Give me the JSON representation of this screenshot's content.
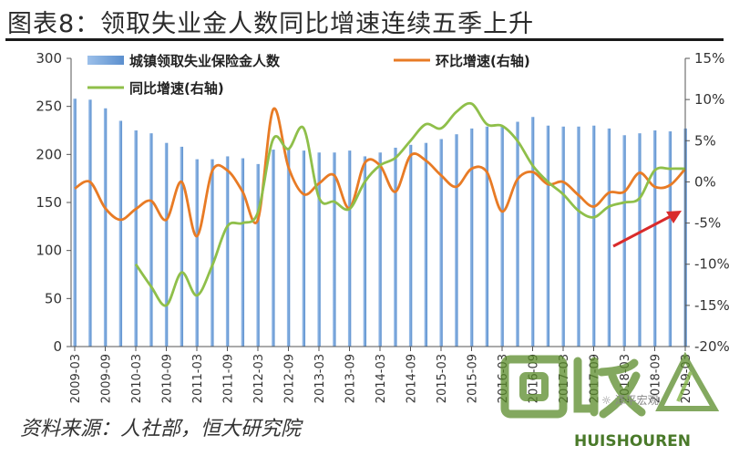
{
  "figure": {
    "title": "图表8：领取失业金人数同比增速连续五季上升",
    "source": "资料来源：人社部，恒大研究院",
    "watermark_social": "泽平宏观",
    "watermark_brand_cn": "回收",
    "watermark_brand_en": "HUISHOUREN"
  },
  "colors": {
    "bar": "#5b8fce",
    "ring_ratio": "#e87b25",
    "year_on_year": "#8fbf4a",
    "arrow": "#d92b2b"
  },
  "chart_data": {
    "type": "bar",
    "categories": [
      "2009-03",
      "2009-06",
      "2009-09",
      "2009-12",
      "2010-03",
      "2010-06",
      "2010-09",
      "2010-12",
      "2011-03",
      "2011-06",
      "2011-09",
      "2011-12",
      "2012-03",
      "2012-06",
      "2012-09",
      "2012-12",
      "2013-03",
      "2013-06",
      "2013-09",
      "2013-12",
      "2014-03",
      "2014-06",
      "2014-09",
      "2014-12",
      "2015-03",
      "2015-06",
      "2015-09",
      "2015-12",
      "2016-03",
      "2016-06",
      "2016-09",
      "2016-12",
      "2017-03",
      "2017-06",
      "2017-09",
      "2017-12",
      "2018-03",
      "2018-06",
      "2018-09",
      "2018-12",
      "2019-03"
    ],
    "tick_labels": [
      "2009-03",
      "2009-09",
      "2010-03",
      "2010-09",
      "2011-03",
      "2011-09",
      "2012-03",
      "2012-09",
      "2013-03",
      "2013-09",
      "2014-03",
      "2014-09",
      "2015-03",
      "2015-09",
      "2016-03",
      "2016-09",
      "2017-03",
      "2017-09",
      "2018-03",
      "2018-09",
      "2019-03"
    ],
    "series": [
      {
        "name": "城镇领取失业保险金人数",
        "type": "bar",
        "axis": "left",
        "values": [
          258,
          257,
          248,
          235,
          225,
          222,
          212,
          208,
          195,
          195,
          198,
          196,
          190,
          205,
          206,
          204,
          202,
          202,
          204,
          198,
          202,
          207,
          210,
          212,
          216,
          221,
          227,
          229,
          230,
          234,
          239,
          230,
          229,
          229,
          230,
          227,
          220,
          222,
          225,
          224,
          227
        ]
      },
      {
        "name": "环比增速(右轴)",
        "type": "line",
        "axis": "right",
        "values": [
          -0.8,
          0.0,
          -3.2,
          -4.6,
          -3.3,
          -2.3,
          -4.6,
          0.0,
          -6.6,
          1.3,
          1.4,
          -1.2,
          -4.6,
          8.8,
          1.8,
          -1.5,
          -0.2,
          0.8,
          -3.2,
          2.3,
          2.0,
          -1.2,
          3.2,
          2.6,
          0.8,
          -0.6,
          1.6,
          1.2,
          -3.6,
          0.3,
          1.2,
          -0.3,
          0.0,
          -1.6,
          -3.0,
          -1.3,
          -1.2,
          1.1,
          -0.6,
          -0.4,
          1.6
        ]
      },
      {
        "name": "同比增速(右轴)",
        "type": "line",
        "axis": "right",
        "values": [
          null,
          null,
          null,
          null,
          -10.0,
          -12.7,
          -15.0,
          -11.0,
          -13.8,
          -10.2,
          -5.4,
          -5.0,
          -3.7,
          5.2,
          4.0,
          6.5,
          -1.9,
          -2.4,
          -3.3,
          0.0,
          2.0,
          2.9,
          5.0,
          7.0,
          6.5,
          8.5,
          9.5,
          7.0,
          6.8,
          5.0,
          2.0,
          0.0,
          -1.5,
          -3.5,
          -4.3,
          -3.0,
          -2.5,
          -2.0,
          1.4,
          1.6,
          1.6
        ]
      }
    ],
    "left_axis": {
      "min": 0,
      "max": 300,
      "ticks": [
        0,
        50,
        100,
        150,
        200,
        250,
        300
      ]
    },
    "right_axis": {
      "min": -20,
      "max": 15,
      "ticks": [
        -20,
        -15,
        -10,
        -5,
        0,
        5,
        10,
        15
      ],
      "tick_labels": [
        "-20%",
        "-15%",
        "-10%",
        "-5%",
        "0%",
        "5%",
        "10%",
        "15%"
      ]
    },
    "legend": [
      {
        "label": "城镇领取失业保险金人数"
      },
      {
        "label": "环比增速(右轴)"
      },
      {
        "label": "同比增速(右轴)"
      }
    ],
    "legend_position": "top-left",
    "grid": false,
    "annotation": "red arrow pointing up-right over 2018-03 to 2019-03"
  }
}
